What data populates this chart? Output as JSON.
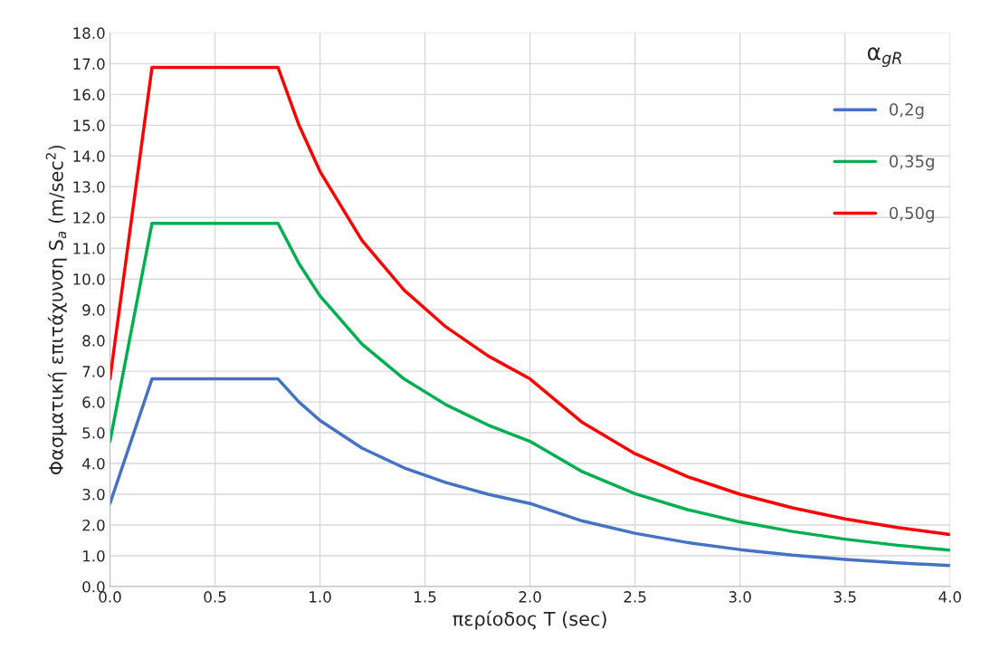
{
  "chart_data": {
    "type": "line",
    "xlabel": "περίοδος T (sec)",
    "ylabel": "Φασματική επιτάχυνση S$_{a}$ (m/sec$^{2}$)",
    "legend_title": "α$_{gR}$",
    "x": [
      0,
      0.2,
      0.8,
      0.9,
      1.0,
      1.2,
      1.4,
      1.6,
      1.8,
      2.0,
      2.25,
      2.5,
      2.75,
      3.0,
      3.25,
      3.5,
      3.75,
      4.0
    ],
    "series": [
      {
        "name": "0,2g",
        "color": "#4472c4",
        "values": [
          2.7,
          6.75,
          6.75,
          6.0,
          5.4,
          4.5,
          3.86,
          3.38,
          3.0,
          2.7,
          2.13,
          1.73,
          1.43,
          1.2,
          1.02,
          0.88,
          0.77,
          0.68
        ]
      },
      {
        "name": "0,35g",
        "color": "#00b050",
        "values": [
          4.72,
          11.81,
          11.81,
          10.5,
          9.45,
          7.88,
          6.75,
          5.91,
          5.25,
          4.72,
          3.73,
          3.02,
          2.5,
          2.1,
          1.79,
          1.54,
          1.34,
          1.18
        ]
      },
      {
        "name": "0,50g",
        "color": "#ff0000",
        "values": [
          6.75,
          16.88,
          16.88,
          15.0,
          13.5,
          11.25,
          9.64,
          8.44,
          7.5,
          6.75,
          5.33,
          4.32,
          3.57,
          3.0,
          2.56,
          2.2,
          1.92,
          1.69
        ]
      }
    ],
    "xlim": [
      0,
      4
    ],
    "xticks": [
      {
        "value": 0,
        "label": "0.0"
      },
      {
        "value": 0.5,
        "label": "0.5"
      },
      {
        "value": 1,
        "label": "1.0"
      },
      {
        "value": 1.5,
        "label": "1.5"
      },
      {
        "value": 2,
        "label": "2.0"
      },
      {
        "value": 2.5,
        "label": "2.5"
      },
      {
        "value": 3,
        "label": "3.0"
      },
      {
        "value": 3.5,
        "label": "3.5"
      },
      {
        "value": 4,
        "label": "4.0"
      }
    ],
    "ylim": [
      0,
      18
    ],
    "yticks": [
      {
        "value": 0,
        "label": "0.0"
      },
      {
        "value": 1,
        "label": "1.0"
      },
      {
        "value": 2,
        "label": "2.0"
      },
      {
        "value": 3,
        "label": "3.0"
      },
      {
        "value": 4,
        "label": "4.0"
      },
      {
        "value": 5,
        "label": "5.0"
      },
      {
        "value": 6,
        "label": "6.0"
      },
      {
        "value": 7,
        "label": "7.0"
      },
      {
        "value": 8,
        "label": "8.0"
      },
      {
        "value": 9,
        "label": "9.0"
      },
      {
        "value": 10,
        "label": "10.0"
      },
      {
        "value": 11,
        "label": "11.0"
      },
      {
        "value": 12,
        "label": "12.0"
      },
      {
        "value": 13,
        "label": "13.0"
      },
      {
        "value": 14,
        "label": "14.0"
      },
      {
        "value": 15,
        "label": "15.0"
      },
      {
        "value": 16,
        "label": "16.0"
      },
      {
        "value": 17,
        "label": "17.0"
      },
      {
        "value": 18,
        "label": "18.0"
      }
    ],
    "grid": true,
    "legend": "right",
    "line_style": "solid"
  }
}
